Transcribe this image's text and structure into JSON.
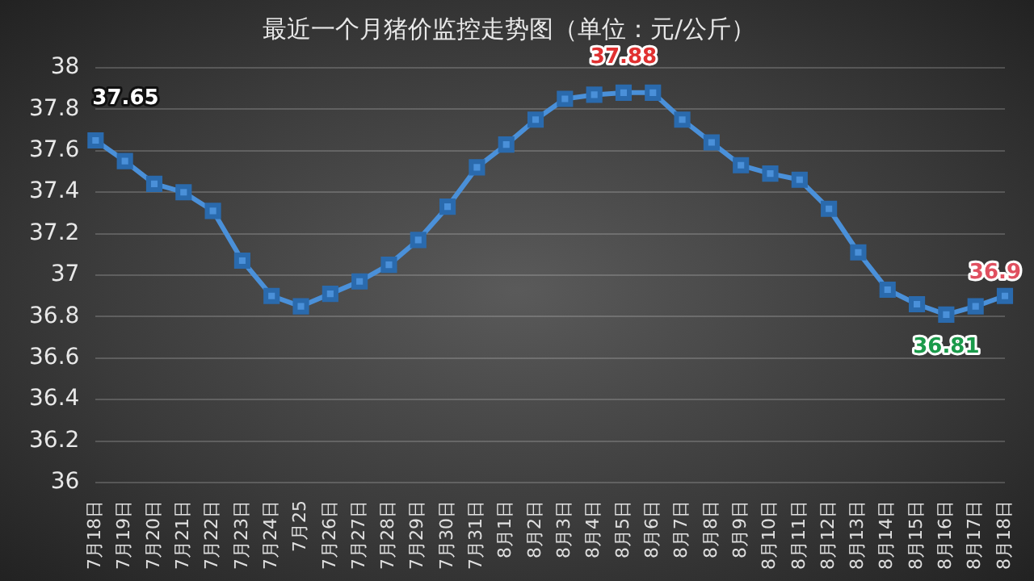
{
  "chart_data": {
    "type": "line",
    "title": "最近一个月猪价监控走势图（单位：元/公斤）",
    "categories": [
      "7月18日",
      "7月19日",
      "7月20日",
      "7月21日",
      "7月22日",
      "7月23日",
      "7月24日",
      "7月25",
      "7月26日",
      "7月27日",
      "7月28日",
      "7月29日",
      "7月30日",
      "7月31日",
      "8月1日",
      "8月2日",
      "8月3日",
      "8月4日",
      "8月5日",
      "8月6日",
      "8月7日",
      "8月8日",
      "8月9日",
      "8月10日",
      "8月11日",
      "8月12日",
      "8月13日",
      "8月14日",
      "8月15日",
      "8月16日",
      "8月17日",
      "8月18日"
    ],
    "series": [
      {
        "color": "#4a90d9",
        "values": [
          37.65,
          37.55,
          37.44,
          37.4,
          37.31,
          37.07,
          36.9,
          36.85,
          36.91,
          36.97,
          37.05,
          37.17,
          37.33,
          37.52,
          37.63,
          37.75,
          37.85,
          37.87,
          37.88,
          37.88,
          37.75,
          37.64,
          37.53,
          37.49,
          37.46,
          37.32,
          37.11,
          36.93,
          36.86,
          36.81,
          36.85,
          36.9
        ],
        "value_labels": [
          "37.65",
          null,
          null,
          null,
          null,
          null,
          null,
          null,
          null,
          null,
          null,
          null,
          null,
          null,
          null,
          null,
          null,
          null,
          "37.88",
          null,
          null,
          null,
          null,
          null,
          null,
          null,
          null,
          null,
          null,
          "36.81",
          null,
          "36.9"
        ]
      }
    ],
    "ylim": [
      36,
      38
    ],
    "yticks": [
      36,
      36.2,
      36.4,
      36.6,
      36.8,
      37,
      37.2,
      37.4,
      37.6,
      37.8,
      38
    ],
    "grid": "y",
    "legend": false,
    "marker": "square",
    "line_style": "solid"
  }
}
